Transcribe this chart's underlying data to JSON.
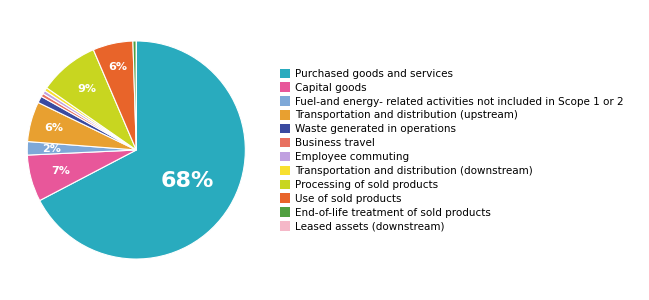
{
  "labels": [
    "Purchased goods and services",
    "Capital goods",
    "Fuel-and energy- related activities not included in Scope 1 or 2",
    "Transportation and distribution (upstream)",
    "Waste generated in operations",
    "Business travel",
    "Employee commuting",
    "Transportation and distribution (downstream)",
    "Processing of sold products",
    "Use of sold products",
    "End-of-life treatment of sold products",
    "Leased assets (downstream)"
  ],
  "values": [
    68,
    7,
    2,
    6,
    1,
    0.5,
    0.5,
    0.5,
    9,
    6,
    0.5,
    0
  ],
  "pie_colors": [
    "#29ABBE",
    "#E8579A",
    "#7EA8D8",
    "#E8A030",
    "#3A4AA0",
    "#E87060",
    "#C0A0E0",
    "#F8E030",
    "#C8D620",
    "#E8642A",
    "#50A040",
    "#F5B8C8"
  ],
  "legend_colors": [
    "#29ABBE",
    "#E8579A",
    "#7EA8D8",
    "#E8A030",
    "#3A4AA0",
    "#E87060",
    "#C0A0E0",
    "#F8E030",
    "#C8D620",
    "#E8642A",
    "#50A040",
    "#F5B8C8"
  ],
  "pct_labels": [
    "68%",
    "7%",
    "2%",
    "6%",
    "",
    "",
    "",
    "",
    "9%",
    "6%",
    "",
    ""
  ],
  "large_label_size": 16,
  "small_label_size": 8,
  "legend_fontsize": 7.5
}
